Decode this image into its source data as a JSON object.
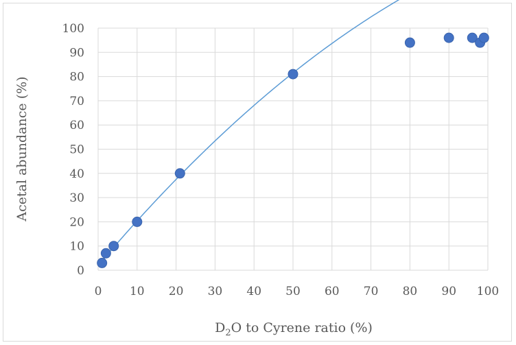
{
  "chart_data": {
    "type": "scatter",
    "xlabel": {
      "base": "D",
      "sub": "2",
      "rest": "O to Cyrene ratio (%)"
    },
    "ylabel": "Acetal abundance (%)",
    "xlim": [
      0,
      100
    ],
    "ylim": [
      0,
      100
    ],
    "x_ticks": [
      0,
      10,
      20,
      30,
      40,
      50,
      60,
      70,
      80,
      90,
      100
    ],
    "y_ticks": [
      0,
      10,
      20,
      30,
      40,
      50,
      60,
      70,
      80,
      90,
      100
    ],
    "grid": true,
    "legend": "none",
    "points": [
      {
        "x": 1,
        "y": 3
      },
      {
        "x": 2,
        "y": 7
      },
      {
        "x": 4,
        "y": 10
      },
      {
        "x": 10,
        "y": 20
      },
      {
        "x": 21,
        "y": 40
      },
      {
        "x": 50,
        "y": 81
      },
      {
        "x": 80,
        "y": 94
      },
      {
        "x": 90,
        "y": 96
      },
      {
        "x": 96,
        "y": 96
      },
      {
        "x": 98,
        "y": 94
      },
      {
        "x": 99,
        "y": 96
      }
    ],
    "trendline": {
      "type": "polynomial",
      "x_range": [
        0.5,
        99.5
      ],
      "coefficients": [
        2.0,
        1.9,
        -0.0062
      ]
    },
    "colors": {
      "marker": "#4472c4",
      "marker_edge": "#3a64ad",
      "trendline": "#5b9bd5",
      "grid": "#d9d9d9",
      "tick_text": "#595959"
    }
  }
}
